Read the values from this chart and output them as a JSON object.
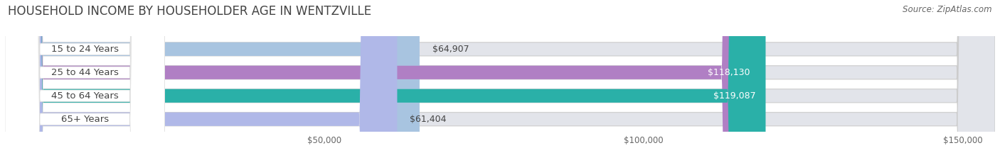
{
  "title": "HOUSEHOLD INCOME BY HOUSEHOLDER AGE IN WENTZVILLE",
  "source": "Source: ZipAtlas.com",
  "categories": [
    "15 to 24 Years",
    "25 to 44 Years",
    "45 to 64 Years",
    "65+ Years"
  ],
  "values": [
    64907,
    118130,
    119087,
    61404
  ],
  "bar_colors": [
    "#a8c4e0",
    "#b07fc4",
    "#2ab0a8",
    "#b0b8e8"
  ],
  "bar_labels": [
    "$64,907",
    "$118,130",
    "$119,087",
    "$61,404"
  ],
  "label_inside_threshold": 90000,
  "xlim": [
    0,
    155000
  ],
  "xticks": [
    50000,
    100000,
    150000
  ],
  "xtick_labels": [
    "$50,000",
    "$100,000",
    "$150,000"
  ],
  "bg_color": "#ffffff",
  "bar_bg_color": "#e2e4ea",
  "pill_bg_color": "#ffffff",
  "title_fontsize": 12,
  "source_fontsize": 8.5,
  "label_fontsize": 9,
  "cat_fontsize": 9.5
}
